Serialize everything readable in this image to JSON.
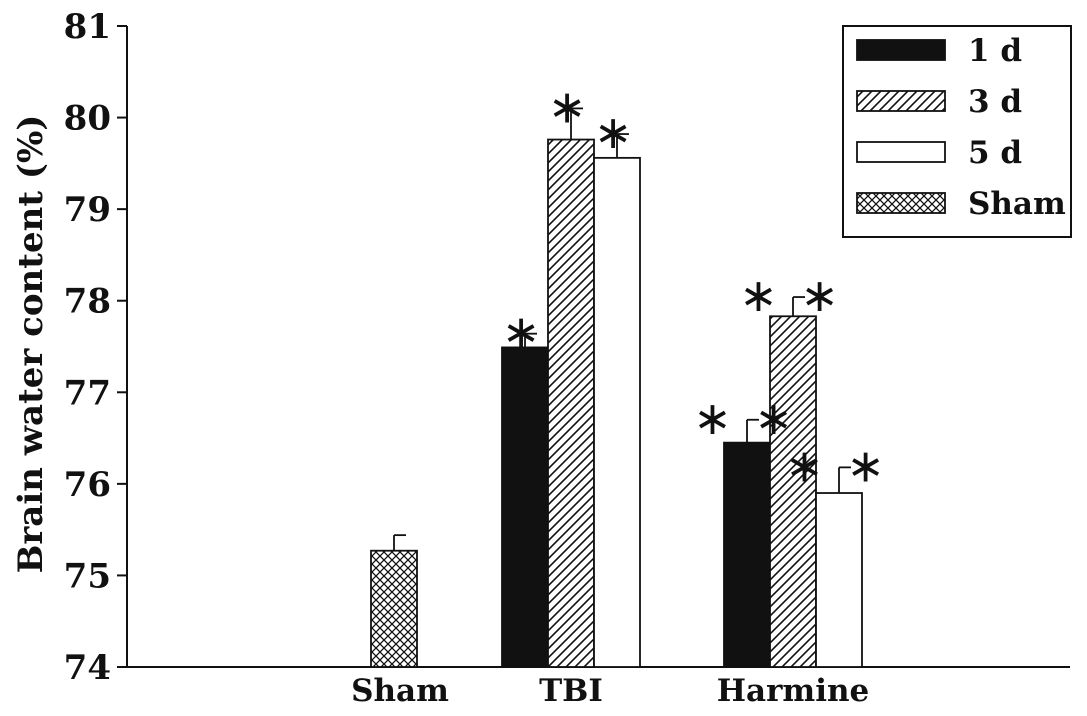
{
  "chart_data": {
    "type": "bar",
    "ylabel": "Brain water content (%)",
    "ylim": [
      74,
      81
    ],
    "yticks": [
      74,
      75,
      76,
      77,
      78,
      79,
      80,
      81
    ],
    "categories": [
      "Sham",
      "TBI",
      "Harmine"
    ],
    "legend_position": "top-right",
    "series": [
      {
        "name": "1 d",
        "key": "black",
        "values": [
          null,
          77.49,
          76.45
        ],
        "errors": [
          null,
          0.15,
          0.25
        ],
        "marks": [
          "",
          "*",
          "**"
        ]
      },
      {
        "name": "3 d",
        "key": "hatch",
        "values": [
          null,
          79.76,
          77.83
        ],
        "errors": [
          null,
          0.34,
          0.21
        ],
        "marks": [
          "",
          "*",
          "**"
        ]
      },
      {
        "name": "5 d",
        "key": "white",
        "values": [
          null,
          79.56,
          75.9
        ],
        "errors": [
          null,
          0.26,
          0.28
        ],
        "marks": [
          "",
          "*",
          "**"
        ]
      },
      {
        "name": "Sham",
        "key": "crosshatch",
        "values": [
          75.27,
          null,
          null
        ],
        "errors": [
          0.17,
          null,
          null
        ],
        "marks": [
          "",
          "",
          ""
        ]
      }
    ],
    "grid": false
  }
}
